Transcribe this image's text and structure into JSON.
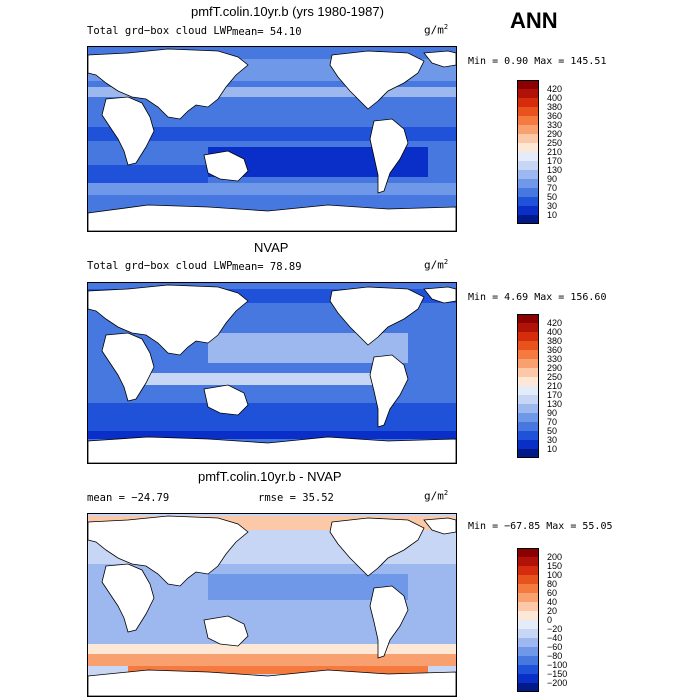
{
  "season": "ANN",
  "units": "g/m",
  "units_sup": "2",
  "panels": [
    {
      "title": "pmfT.colin.10yr.b (yrs 1980-1987)",
      "left_label": "Total grd−box cloud LWP",
      "stat1": "mean=  54.10",
      "stat2": "",
      "minmax": "Min =   0.90 Max = 145.51",
      "levels": [
        "420",
        "400",
        "380",
        "360",
        "330",
        "290",
        "250",
        "210",
        "170",
        "130",
        "90",
        "70",
        "50",
        "30",
        "10"
      ],
      "colors": [
        "#8b0000",
        "#b01208",
        "#d42c0c",
        "#e8521c",
        "#f47a40",
        "#f8a070",
        "#fbc8a8",
        "#fde8d8",
        "#e4ecfa",
        "#c6d6f4",
        "#9cb8ee",
        "#6f98e8",
        "#4678e0",
        "#1f52d8",
        "#0a2fc8",
        "#001a8a"
      ]
    },
    {
      "title": "NVAP",
      "left_label": "Total grd−box cloud LWP",
      "stat1": "mean=  78.89",
      "stat2": "",
      "minmax": "Min =   4.69 Max = 156.60",
      "levels": [
        "420",
        "400",
        "380",
        "360",
        "330",
        "290",
        "250",
        "210",
        "170",
        "130",
        "90",
        "70",
        "50",
        "30",
        "10"
      ],
      "colors": [
        "#8b0000",
        "#b01208",
        "#d42c0c",
        "#e8521c",
        "#f47a40",
        "#f8a070",
        "#fbc8a8",
        "#fde8d8",
        "#e4ecfa",
        "#c6d6f4",
        "#9cb8ee",
        "#6f98e8",
        "#4678e0",
        "#1f52d8",
        "#0a2fc8",
        "#001a8a"
      ]
    },
    {
      "title": "pmfT.colin.10yr.b - NVAP",
      "left_label": "",
      "stat1": "mean = −24.79",
      "stat2": "rmse =  35.52",
      "minmax": "Min = −67.85 Max =  55.05",
      "levels": [
        "200",
        "150",
        "100",
        "80",
        "60",
        "40",
        "20",
        "0",
        "−20",
        "−40",
        "−60",
        "−80",
        "−100",
        "−150",
        "−200"
      ],
      "colors": [
        "#8b0000",
        "#b01208",
        "#d42c0c",
        "#e8521c",
        "#f47a40",
        "#f8a070",
        "#fbc8a8",
        "#fde8d8",
        "#e4ecfa",
        "#c6d6f4",
        "#9cb8ee",
        "#6f98e8",
        "#4678e0",
        "#1f52d8",
        "#0a2fc8",
        "#001a8a"
      ]
    }
  ]
}
